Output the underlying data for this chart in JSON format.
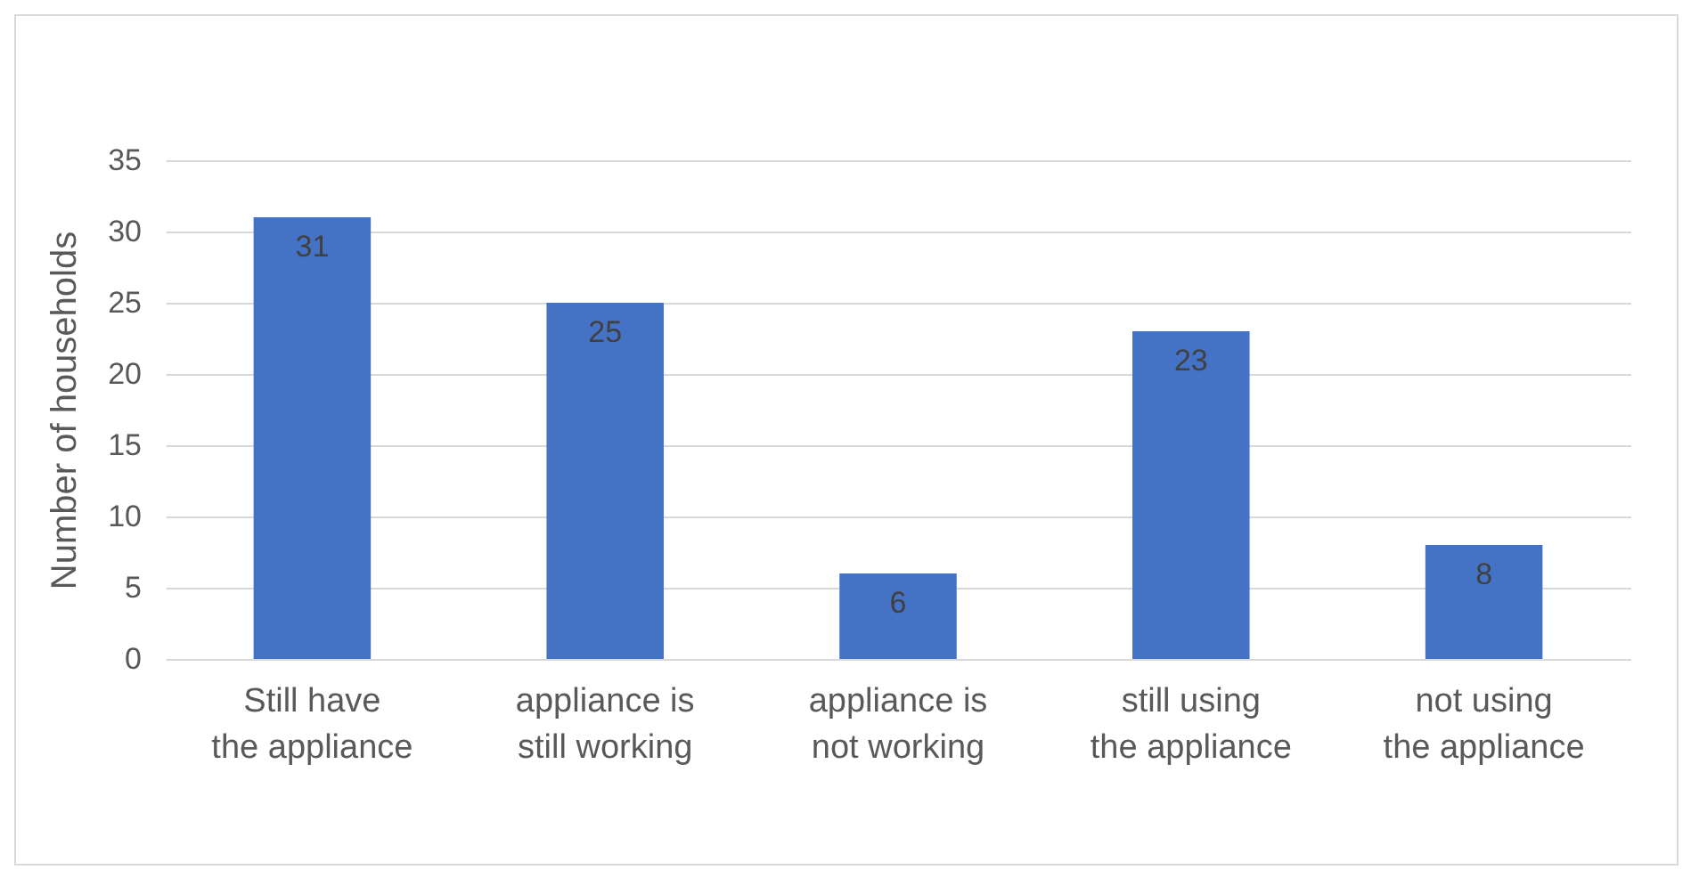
{
  "chart_data": {
    "type": "bar",
    "ylabel": "Number of households",
    "categories": [
      "Still have the appliance",
      "appliance is still working",
      "appliance is not working",
      "still using the appliance",
      "not using the appliance"
    ],
    "values": [
      31,
      25,
      6,
      23,
      8
    ],
    "color": "#4472c4",
    "ylim": [
      0,
      35
    ],
    "yticks": [
      0,
      5,
      10,
      15,
      20,
      25,
      30,
      35
    ],
    "grid": "y",
    "data_labels": true
  }
}
